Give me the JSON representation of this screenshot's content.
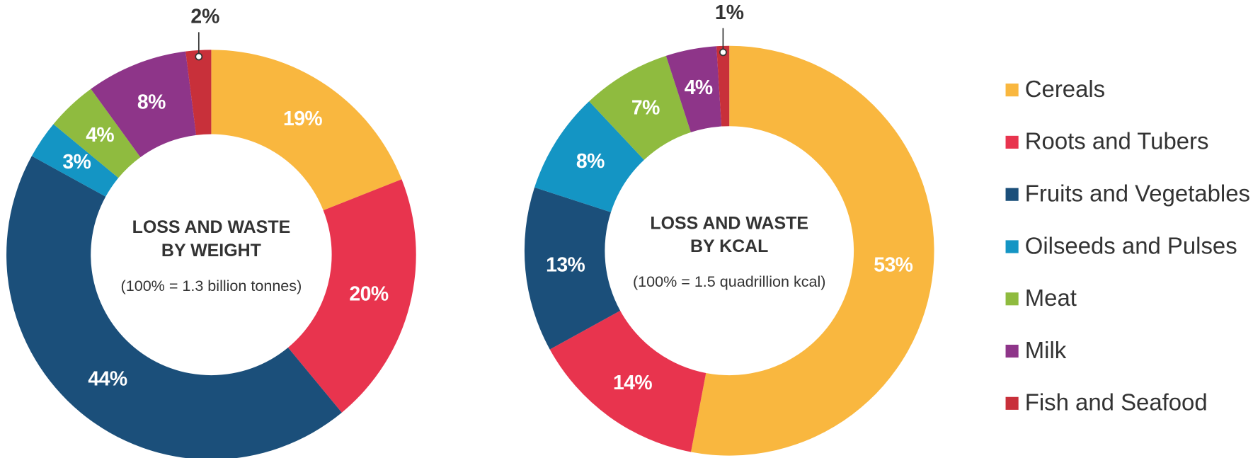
{
  "chart_data": [
    {
      "type": "pie",
      "donut": true,
      "title": [
        "LOSS AND WASTE",
        "BY WEIGHT"
      ],
      "subtitle": "(100% = 1.3 billion tonnes)",
      "categories": [
        "Cereals",
        "Roots and Tubers",
        "Fruits and Vegetables",
        "Oilseeds and Pulses",
        "Meat",
        "Milk",
        "Fish and Seafood"
      ],
      "values": [
        19,
        20,
        44,
        3,
        4,
        8,
        2
      ],
      "value_labels": [
        "19%",
        "20%",
        "44%",
        "3%",
        "4%",
        "8%",
        "2%"
      ],
      "colors": [
        "#f9b73f",
        "#e8344e",
        "#1b4f7a",
        "#1495c4",
        "#8fbb3f",
        "#8e3589",
        "#c8303a"
      ]
    },
    {
      "type": "pie",
      "donut": true,
      "title": [
        "LOSS AND WASTE",
        "BY KCAL"
      ],
      "subtitle": "(100% = 1.5 quadrillion kcal)",
      "categories": [
        "Cereals",
        "Roots and Tubers",
        "Fruits and Vegetables",
        "Oilseeds and Pulses",
        "Meat",
        "Milk",
        "Fish and Seafood"
      ],
      "values": [
        53,
        14,
        13,
        8,
        7,
        4,
        1
      ],
      "value_labels": [
        "53%",
        "14%",
        "13%",
        "8%",
        "7%",
        "4%",
        "1%"
      ],
      "colors": [
        "#f9b73f",
        "#e8344e",
        "#1b4f7a",
        "#1495c4",
        "#8fbb3f",
        "#8e3589",
        "#c8303a"
      ]
    }
  ]
}
